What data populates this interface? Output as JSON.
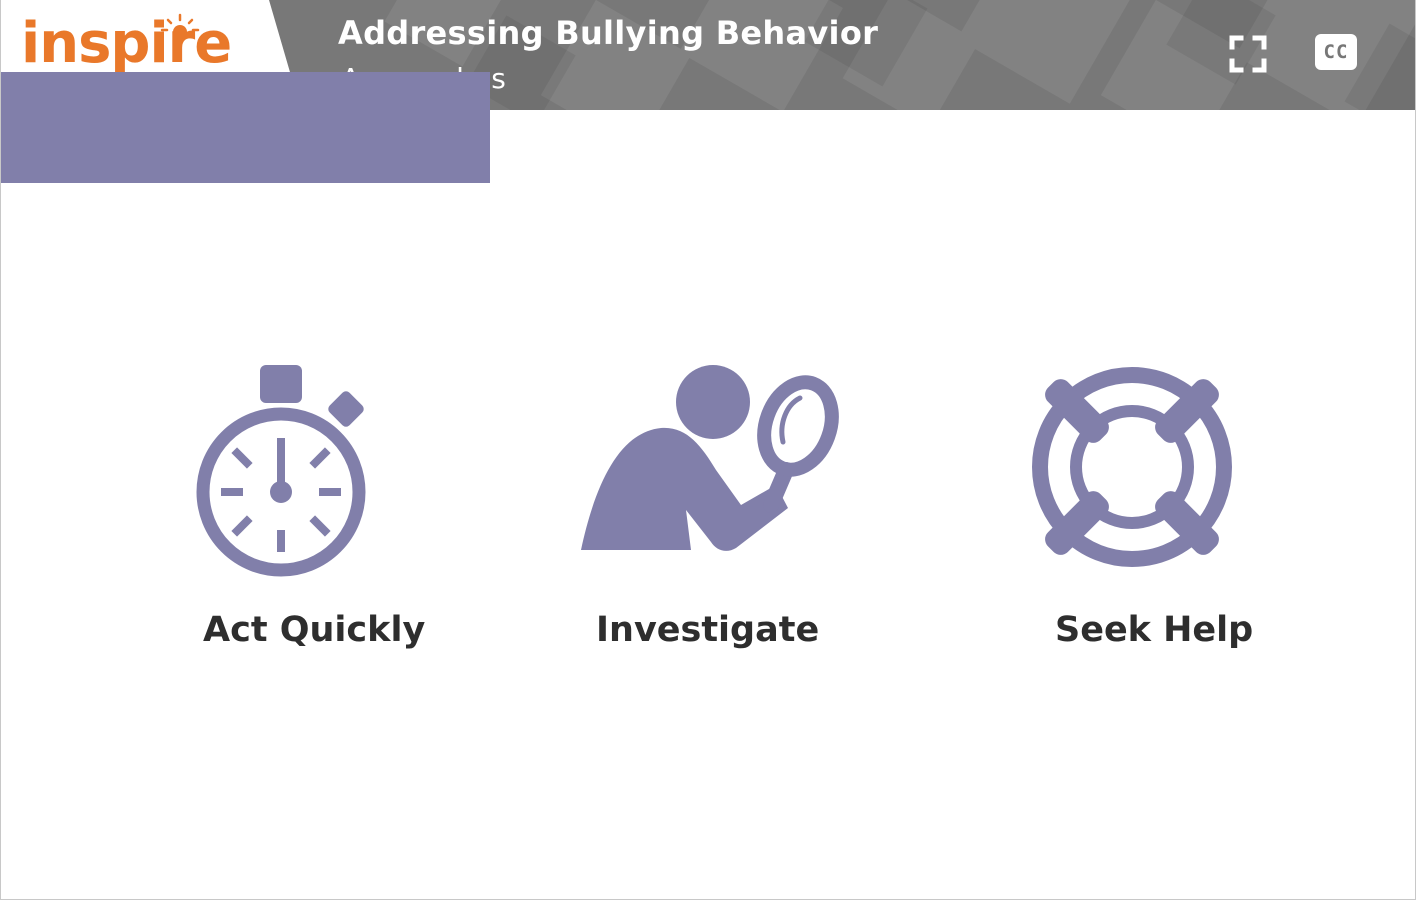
{
  "header": {
    "logo_text": "inspire",
    "title": "Addressing Bullying Behavior",
    "subtitle": "Approaches"
  },
  "controls": {
    "fullscreen_icon": "fullscreen-icon",
    "cc_label": "CC"
  },
  "options": [
    {
      "label": "Act Quickly",
      "icon": "stopwatch-icon"
    },
    {
      "label": "Investigate",
      "icon": "person-magnifier-icon"
    },
    {
      "label": "Seek Help",
      "icon": "lifebuoy-icon"
    }
  ],
  "colors": {
    "icon": "#817faa",
    "header": "#7a7a7a",
    "logo": "#e9782a",
    "overlay": "#817faa",
    "label": "#2e2e2e"
  }
}
